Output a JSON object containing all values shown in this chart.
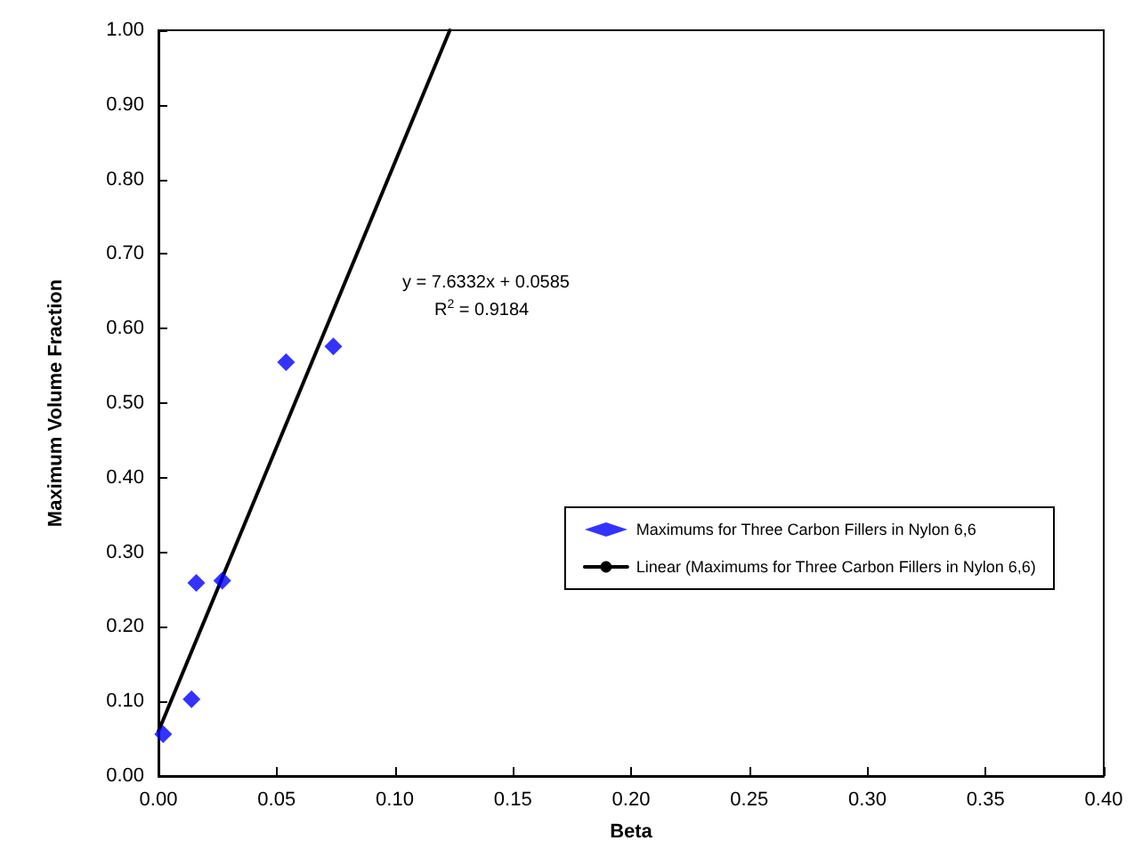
{
  "chart_data": {
    "type": "scatter",
    "xlabel": "Beta",
    "ylabel": "Maximum Volume Fraction",
    "series": [
      {
        "name": "Maximums for Three Carbon Fillers in Nylon 6,6",
        "color": "#0000ff",
        "marker": "diamond",
        "x": [
          0.002,
          0.014,
          0.016,
          0.027,
          0.054,
          0.074
        ],
        "values": [
          0.056,
          0.103,
          0.259,
          0.262,
          0.555,
          0.576
        ]
      },
      {
        "name": "Linear (Maximums for Three Carbon Fillers in Nylon 6,6)",
        "type": "line",
        "color": "#000000",
        "marker": "none",
        "line_style": "solid",
        "x": [
          0,
          0.1233
        ],
        "values": [
          0.06,
          1.0
        ]
      }
    ],
    "xlim": [
      0,
      0.4
    ],
    "xticks": [
      {
        "value": 0,
        "label": "0.00"
      },
      0.05,
      {
        "value": 0.1,
        "label": "0.10"
      },
      0.15,
      {
        "value": 0.2,
        "label": "0.20"
      },
      0.25,
      {
        "value": 0.3,
        "label": "0.30"
      },
      0.35,
      {
        "value": 0.4,
        "label": "0.40"
      }
    ],
    "ylim": [
      0,
      1
    ],
    "yticks": [
      {
        "value": 0,
        "label": "0.00"
      },
      {
        "value": 0.1,
        "label": "0.10"
      },
      {
        "value": 0.2,
        "label": "0.20"
      },
      {
        "value": 0.3,
        "label": "0.30"
      },
      {
        "value": 0.4,
        "label": "0.40"
      },
      {
        "value": 0.5,
        "label": "0.50"
      },
      {
        "value": 0.6,
        "label": "0.60"
      },
      {
        "value": 0.7,
        "label": "0.70"
      },
      {
        "value": 0.8,
        "label": "0.80"
      },
      {
        "value": 0.9,
        "label": "0.90"
      },
      {
        "value": 1,
        "label": "1.00"
      }
    ],
    "annotations": [
      "y = 7.6332x + 0.0585",
      "R$^{2}$ = 0.9184"
    ],
    "legend": "right",
    "grid": false
  }
}
